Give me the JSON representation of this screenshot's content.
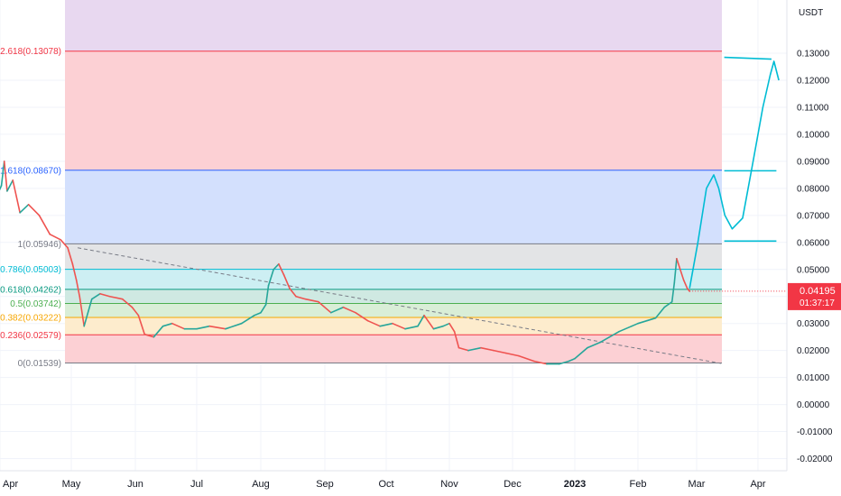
{
  "chart_data": {
    "type": "line",
    "currency": "USDT",
    "y_ticks": [
      0.13,
      0.12,
      0.11,
      0.1,
      0.09,
      0.08,
      0.07,
      0.06,
      0.05,
      0.04,
      0.03,
      0.02,
      0.01,
      0.0,
      -0.01,
      -0.02
    ],
    "y_tick_labels": [
      "0.13000",
      "0.12000",
      "0.11000",
      "0.10000",
      "0.09000",
      "0.08000",
      "0.07000",
      "0.06000",
      "0.05000",
      "0.04000",
      "0.03000",
      "0.02000",
      "0.01000",
      "0.00000",
      "-0.01000",
      "-0.02000"
    ],
    "ylim": [
      -0.0245,
      0.1497
    ],
    "x_labels": [
      {
        "label": "Apr",
        "x": 0,
        "bold": false
      },
      {
        "label": "May",
        "x": 1,
        "bold": false
      },
      {
        "label": "Jun",
        "x": 2,
        "bold": false
      },
      {
        "label": "Jul",
        "x": 3,
        "bold": false
      },
      {
        "label": "Aug",
        "x": 4,
        "bold": false
      },
      {
        "label": "Sep",
        "x": 5,
        "bold": false
      },
      {
        "label": "Oct",
        "x": 6,
        "bold": false
      },
      {
        "label": "Nov",
        "x": 7,
        "bold": false
      },
      {
        "label": "Dec",
        "x": 8,
        "bold": false
      },
      {
        "label": "2023",
        "x": 9,
        "bold": true
      },
      {
        "label": "Feb",
        "x": 10,
        "bold": false
      },
      {
        "label": "Mar",
        "x": 11,
        "bold": false
      },
      {
        "label": "Apr",
        "x": 12,
        "bold": false
      }
    ],
    "fib_levels": [
      {
        "label": "2.618(0.13078)",
        "ratio": 2.618,
        "price": 0.13078,
        "color": "#f23645",
        "fill": "#fcd0d4"
      },
      {
        "label": "1.618(0.08670)",
        "ratio": 1.618,
        "price": 0.0867,
        "color": "#2962ff",
        "fill": "#d3e0fd"
      },
      {
        "label": "1(0.05946)",
        "ratio": 1,
        "price": 0.05946,
        "color": "#787b86",
        "fill": "#e3e4e6"
      },
      {
        "label": "0.786(0.05003)",
        "ratio": 0.786,
        "price": 0.05003,
        "color": "#00bcd4",
        "fill": "#cdeff3"
      },
      {
        "label": "0.618(0.04262)",
        "ratio": 0.618,
        "price": 0.04262,
        "color": "#089981",
        "fill": "#cfe9e2"
      },
      {
        "label": "0.5(0.03742)",
        "ratio": 0.5,
        "price": 0.03742,
        "color": "#4caf50",
        "fill": "#d9eed7"
      },
      {
        "label": "0.382(0.03222)",
        "ratio": 0.382,
        "price": 0.03222,
        "color": "#f7a600",
        "fill": "#fdeccd"
      },
      {
        "label": "0.236(0.02579)",
        "ratio": 0.236,
        "price": 0.02579,
        "color": "#f23645",
        "fill": "#fcd0d4"
      },
      {
        "label": "0(0.01539)",
        "ratio": 0,
        "price": 0.01539,
        "color": "#787b86",
        "fill": null
      }
    ],
    "top_zone_color": "#e8d8f0",
    "price_path": [
      [
        -0.05,
        0.077
      ],
      [
        0.02,
        0.081
      ],
      [
        0.06,
        0.09
      ],
      [
        0.1,
        0.079
      ],
      [
        0.18,
        0.083
      ],
      [
        0.28,
        0.071
      ],
      [
        0.4,
        0.074
      ],
      [
        0.55,
        0.07
      ],
      [
        0.7,
        0.063
      ],
      [
        0.85,
        0.061
      ],
      [
        0.95,
        0.058
      ],
      [
        1.02,
        0.052
      ],
      [
        1.08,
        0.046
      ],
      [
        1.13,
        0.04
      ],
      [
        1.2,
        0.029
      ],
      [
        1.32,
        0.039
      ],
      [
        1.45,
        0.041
      ],
      [
        1.6,
        0.04
      ],
      [
        1.8,
        0.039
      ],
      [
        1.95,
        0.036
      ],
      [
        2.05,
        0.033
      ],
      [
        2.15,
        0.026
      ],
      [
        2.3,
        0.025
      ],
      [
        2.45,
        0.029
      ],
      [
        2.6,
        0.03
      ],
      [
        2.8,
        0.028
      ],
      [
        3.0,
        0.028
      ],
      [
        3.2,
        0.029
      ],
      [
        3.45,
        0.028
      ],
      [
        3.7,
        0.03
      ],
      [
        3.9,
        0.033
      ],
      [
        4.0,
        0.034
      ],
      [
        4.08,
        0.037
      ],
      [
        4.12,
        0.044
      ],
      [
        4.2,
        0.05
      ],
      [
        4.28,
        0.052
      ],
      [
        4.36,
        0.048
      ],
      [
        4.45,
        0.043
      ],
      [
        4.55,
        0.04
      ],
      [
        4.7,
        0.039
      ],
      [
        4.9,
        0.038
      ],
      [
        5.1,
        0.034
      ],
      [
        5.3,
        0.036
      ],
      [
        5.5,
        0.034
      ],
      [
        5.7,
        0.031
      ],
      [
        5.9,
        0.029
      ],
      [
        6.1,
        0.03
      ],
      [
        6.3,
        0.028
      ],
      [
        6.5,
        0.029
      ],
      [
        6.6,
        0.033
      ],
      [
        6.75,
        0.028
      ],
      [
        6.9,
        0.029
      ],
      [
        7.0,
        0.03
      ],
      [
        7.08,
        0.027
      ],
      [
        7.15,
        0.021
      ],
      [
        7.3,
        0.02
      ],
      [
        7.5,
        0.021
      ],
      [
        7.7,
        0.02
      ],
      [
        7.9,
        0.019
      ],
      [
        8.1,
        0.018
      ],
      [
        8.35,
        0.016
      ],
      [
        8.55,
        0.015
      ],
      [
        8.75,
        0.015
      ],
      [
        8.9,
        0.016
      ],
      [
        9.0,
        0.017
      ],
      [
        9.2,
        0.021
      ],
      [
        9.4,
        0.023
      ],
      [
        9.55,
        0.025
      ],
      [
        9.7,
        0.027
      ],
      [
        9.9,
        0.029
      ],
      [
        10.0,
        0.03
      ],
      [
        10.15,
        0.031
      ],
      [
        10.3,
        0.032
      ],
      [
        10.45,
        0.036
      ],
      [
        10.58,
        0.038
      ],
      [
        10.62,
        0.045
      ],
      [
        10.66,
        0.054
      ],
      [
        10.72,
        0.05
      ],
      [
        10.78,
        0.046
      ],
      [
        10.84,
        0.043
      ],
      [
        10.88,
        0.0419
      ]
    ],
    "current_price_label": "0.04195",
    "countdown_label": "01:37:17",
    "current_price": 0.04195,
    "trendline": [
      [
        1.1,
        0.058
      ],
      [
        11.4,
        0.0152
      ]
    ],
    "projection": [
      [
        10.88,
        0.043
      ],
      [
        11.02,
        0.06
      ],
      [
        11.16,
        0.08
      ],
      [
        11.28,
        0.085
      ],
      [
        11.36,
        0.08
      ],
      [
        11.46,
        0.07
      ],
      [
        11.58,
        0.065
      ],
      [
        11.75,
        0.069
      ],
      [
        11.92,
        0.09
      ],
      [
        12.08,
        0.11
      ],
      [
        12.2,
        0.122
      ],
      [
        12.26,
        0.127
      ],
      [
        12.34,
        0.12
      ]
    ],
    "projection_marks": [
      {
        "price": 0.1285,
        "x0": 11.45,
        "x1": 12.22
      },
      {
        "price": 0.0865,
        "x0": 11.45,
        "x1": 12.3
      },
      {
        "price": 0.0605,
        "x0": 11.45,
        "x1": 12.3
      }
    ]
  }
}
